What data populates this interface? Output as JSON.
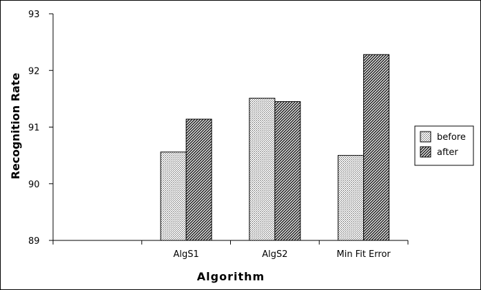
{
  "chart_data": {
    "type": "bar",
    "categories": [
      "",
      "AlgS1",
      "AlgS2",
      "Min Fit Error"
    ],
    "series": [
      {
        "name": "before",
        "values": [
          null,
          90.56,
          91.51,
          90.5
        ]
      },
      {
        "name": "after",
        "values": [
          null,
          91.14,
          91.45,
          92.28
        ]
      }
    ],
    "xlabel": "Algorithm",
    "ylabel": "Recognition Rate",
    "ylim": [
      89,
      93
    ],
    "yticks": [
      "89",
      "90",
      "91",
      "92",
      "93"
    ],
    "grid": false,
    "legend_position": "right",
    "fill_patterns": [
      "light-dotted",
      "dark-diagonal"
    ]
  }
}
